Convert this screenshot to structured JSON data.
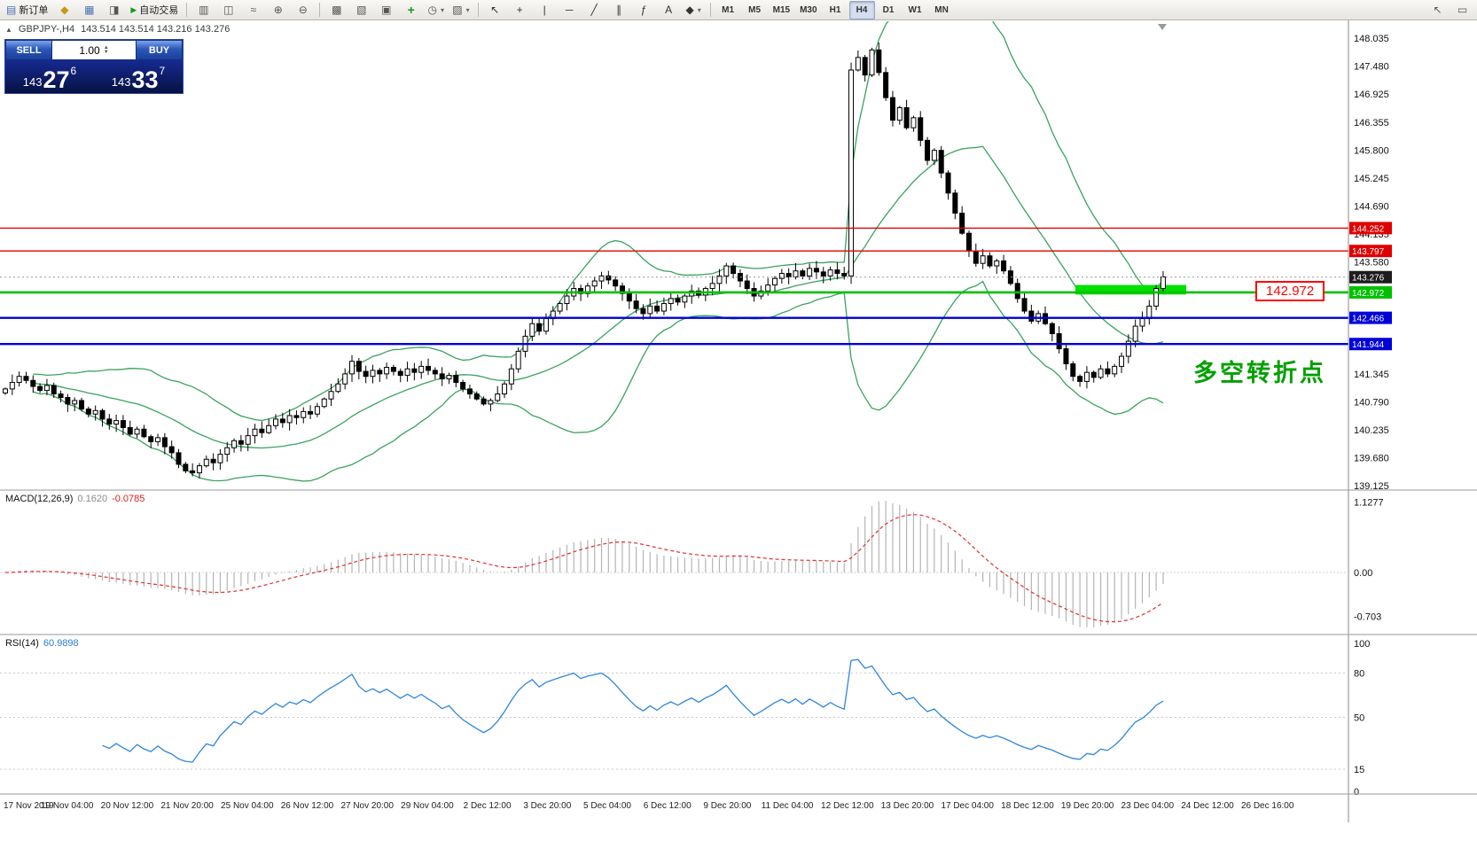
{
  "toolbar": {
    "new_order": "新订单",
    "autotrading": "自动交易",
    "timeframes": [
      "M1",
      "M5",
      "M15",
      "M30",
      "H1",
      "H4",
      "D1",
      "W1",
      "MN"
    ],
    "active_timeframe": "H4"
  },
  "icons": {
    "new_order": "▤",
    "metaeditor": "◆",
    "data_window": "▦",
    "navigator": "◨",
    "autotrading_play": "▶",
    "bar_chart": "▥",
    "candlestick": "◫",
    "line_chart": "≈",
    "zoom_in": "⊕",
    "zoom_out": "⊖",
    "tile_windows": "▩",
    "cascade_windows": "▧",
    "new_chart_window": "▣",
    "indicators_plus": "+",
    "periods_clock": "◷",
    "templates": "▨",
    "dropdown_caret": "▾",
    "cursor": "↖",
    "crosshair": "+",
    "vertical_line": "|",
    "horizontal_line": "─",
    "trendline": "╱",
    "channel": "∥",
    "fibonacci": "ƒ",
    "text_tool": "A",
    "objects": "◆",
    "collapse_panel": "▲",
    "pointer": "↖",
    "chat": "▭",
    "spin_up": "▲",
    "spin_down": "▼"
  },
  "chart": {
    "symbol": "GBPJPY-,H4",
    "ohlc": "143.514 143.514 143.216 143.276",
    "annotation": "多空转折点",
    "price_box_label": "142.972"
  },
  "trade_panel": {
    "sell_label": "SELL",
    "buy_label": "BUY",
    "volume": "1.00",
    "sell_price_main": "143",
    "sell_price_big": "27",
    "sell_price_sup": "6",
    "buy_price_main": "143",
    "buy_price_big": "33",
    "buy_price_sup": "7"
  },
  "macd": {
    "label": "MACD(12,26,9)",
    "main_value": "0.1620",
    "signal_value": "-0.0785",
    "axis_labels": [
      "1.1277",
      "0.00",
      "-0.703"
    ]
  },
  "rsi": {
    "label": "RSI(14)",
    "value": "60.9898",
    "axis_labels": [
      "100",
      "80",
      "50",
      "15",
      "0"
    ]
  },
  "chart_data": {
    "type": "candlestick",
    "symbol": "GBPJPY-",
    "timeframe": "H4",
    "ylim": [
      139.125,
      148.035
    ],
    "price_ticks": [
      "148.035",
      "147.480",
      "146.925",
      "146.355",
      "145.800",
      "145.245",
      "144.690",
      "144.135",
      "143.580",
      "143.025",
      "142.470",
      "141.915",
      "141.345",
      "140.790",
      "140.235",
      "139.680",
      "139.125"
    ],
    "levels": {
      "resistance": [
        144.252,
        143.797
      ],
      "pivot": 142.972,
      "support": [
        142.466,
        141.944
      ],
      "current": 143.276
    },
    "highlight_rect": {
      "price_top": 143.12,
      "price_bottom": 142.93
    },
    "indicators": {
      "bollinger": "20,2",
      "macd": "12,26,9",
      "rsi": "14"
    },
    "closes": [
      141.05,
      141.18,
      141.3,
      141.22,
      141.1,
      141.02,
      141.12,
      140.95,
      140.88,
      140.75,
      140.82,
      140.65,
      140.55,
      140.62,
      140.45,
      140.35,
      140.42,
      140.28,
      140.15,
      140.25,
      140.1,
      140.0,
      140.08,
      139.9,
      139.78,
      139.55,
      139.42,
      139.38,
      139.52,
      139.65,
      139.58,
      139.75,
      139.88,
      140.02,
      139.95,
      140.12,
      140.25,
      140.18,
      140.32,
      140.45,
      140.38,
      140.52,
      140.48,
      140.6,
      140.55,
      140.7,
      140.85,
      141.0,
      141.15,
      141.35,
      141.6,
      141.4,
      141.3,
      141.42,
      141.35,
      141.48,
      141.4,
      141.32,
      141.45,
      141.38,
      141.5,
      141.42,
      141.35,
      141.25,
      141.32,
      141.18,
      141.05,
      140.95,
      140.85,
      140.75,
      140.82,
      140.95,
      141.15,
      141.45,
      141.8,
      142.1,
      142.35,
      142.2,
      142.45,
      142.6,
      142.75,
      142.9,
      143.05,
      142.95,
      143.1,
      143.2,
      143.3,
      143.22,
      143.1,
      142.95,
      142.8,
      142.65,
      142.55,
      142.7,
      142.6,
      142.75,
      142.85,
      142.78,
      142.9,
      143.0,
      142.92,
      143.05,
      143.15,
      143.3,
      143.5,
      143.35,
      143.2,
      143.05,
      142.9,
      143.0,
      143.12,
      143.25,
      143.35,
      143.28,
      143.4,
      143.3,
      143.45,
      143.38,
      143.3,
      143.42,
      143.35,
      143.3,
      147.4,
      147.65,
      147.3,
      147.8,
      147.35,
      146.85,
      146.4,
      146.65,
      146.25,
      146.45,
      146.0,
      145.6,
      145.8,
      145.35,
      144.95,
      144.55,
      144.15,
      143.8,
      143.55,
      143.7,
      143.5,
      143.6,
      143.4,
      143.15,
      142.85,
      142.6,
      142.4,
      142.55,
      142.35,
      142.15,
      141.85,
      141.55,
      141.3,
      141.2,
      141.38,
      141.28,
      141.45,
      141.35,
      141.5,
      141.7,
      142.0,
      142.3,
      142.45,
      142.7,
      143.05,
      143.28
    ],
    "x_labels": [
      "17 Nov 2019",
      "19 Nov 04:00",
      "20 Nov 12:00",
      "21 Nov 20:00",
      "25 Nov 04:00",
      "26 Nov 12:00",
      "27 Nov 20:00",
      "29 Nov 04:00",
      "2 Dec 12:00",
      "3 Dec 20:00",
      "5 Dec 04:00",
      "6 Dec 12:00",
      "9 Dec 20:00",
      "11 Dec 04:00",
      "12 Dec 12:00",
      "13 Dec 20:00",
      "17 Dec 04:00",
      "18 Dec 12:00",
      "19 Dec 20:00",
      "23 Dec 04:00",
      "24 Dec 12:00",
      "26 Dec 16:00"
    ]
  },
  "colors": {
    "resistance_red": "#e00000",
    "support_blue": "#0000d8",
    "pivot_green": "#00c000",
    "highlight_green": "#00e000",
    "annotation_green": "#00a000",
    "price_box_red": "#ff0000",
    "current_badge": "#1c1c1c",
    "bollinger_green": "#3aa35f",
    "macd_hist": "#b4b4b4",
    "macd_signal": "#e03030",
    "rsi_blue": "#2e86de",
    "candle_up": "#ffffff",
    "candle_down": "#000000",
    "candle_border": "#000000"
  }
}
